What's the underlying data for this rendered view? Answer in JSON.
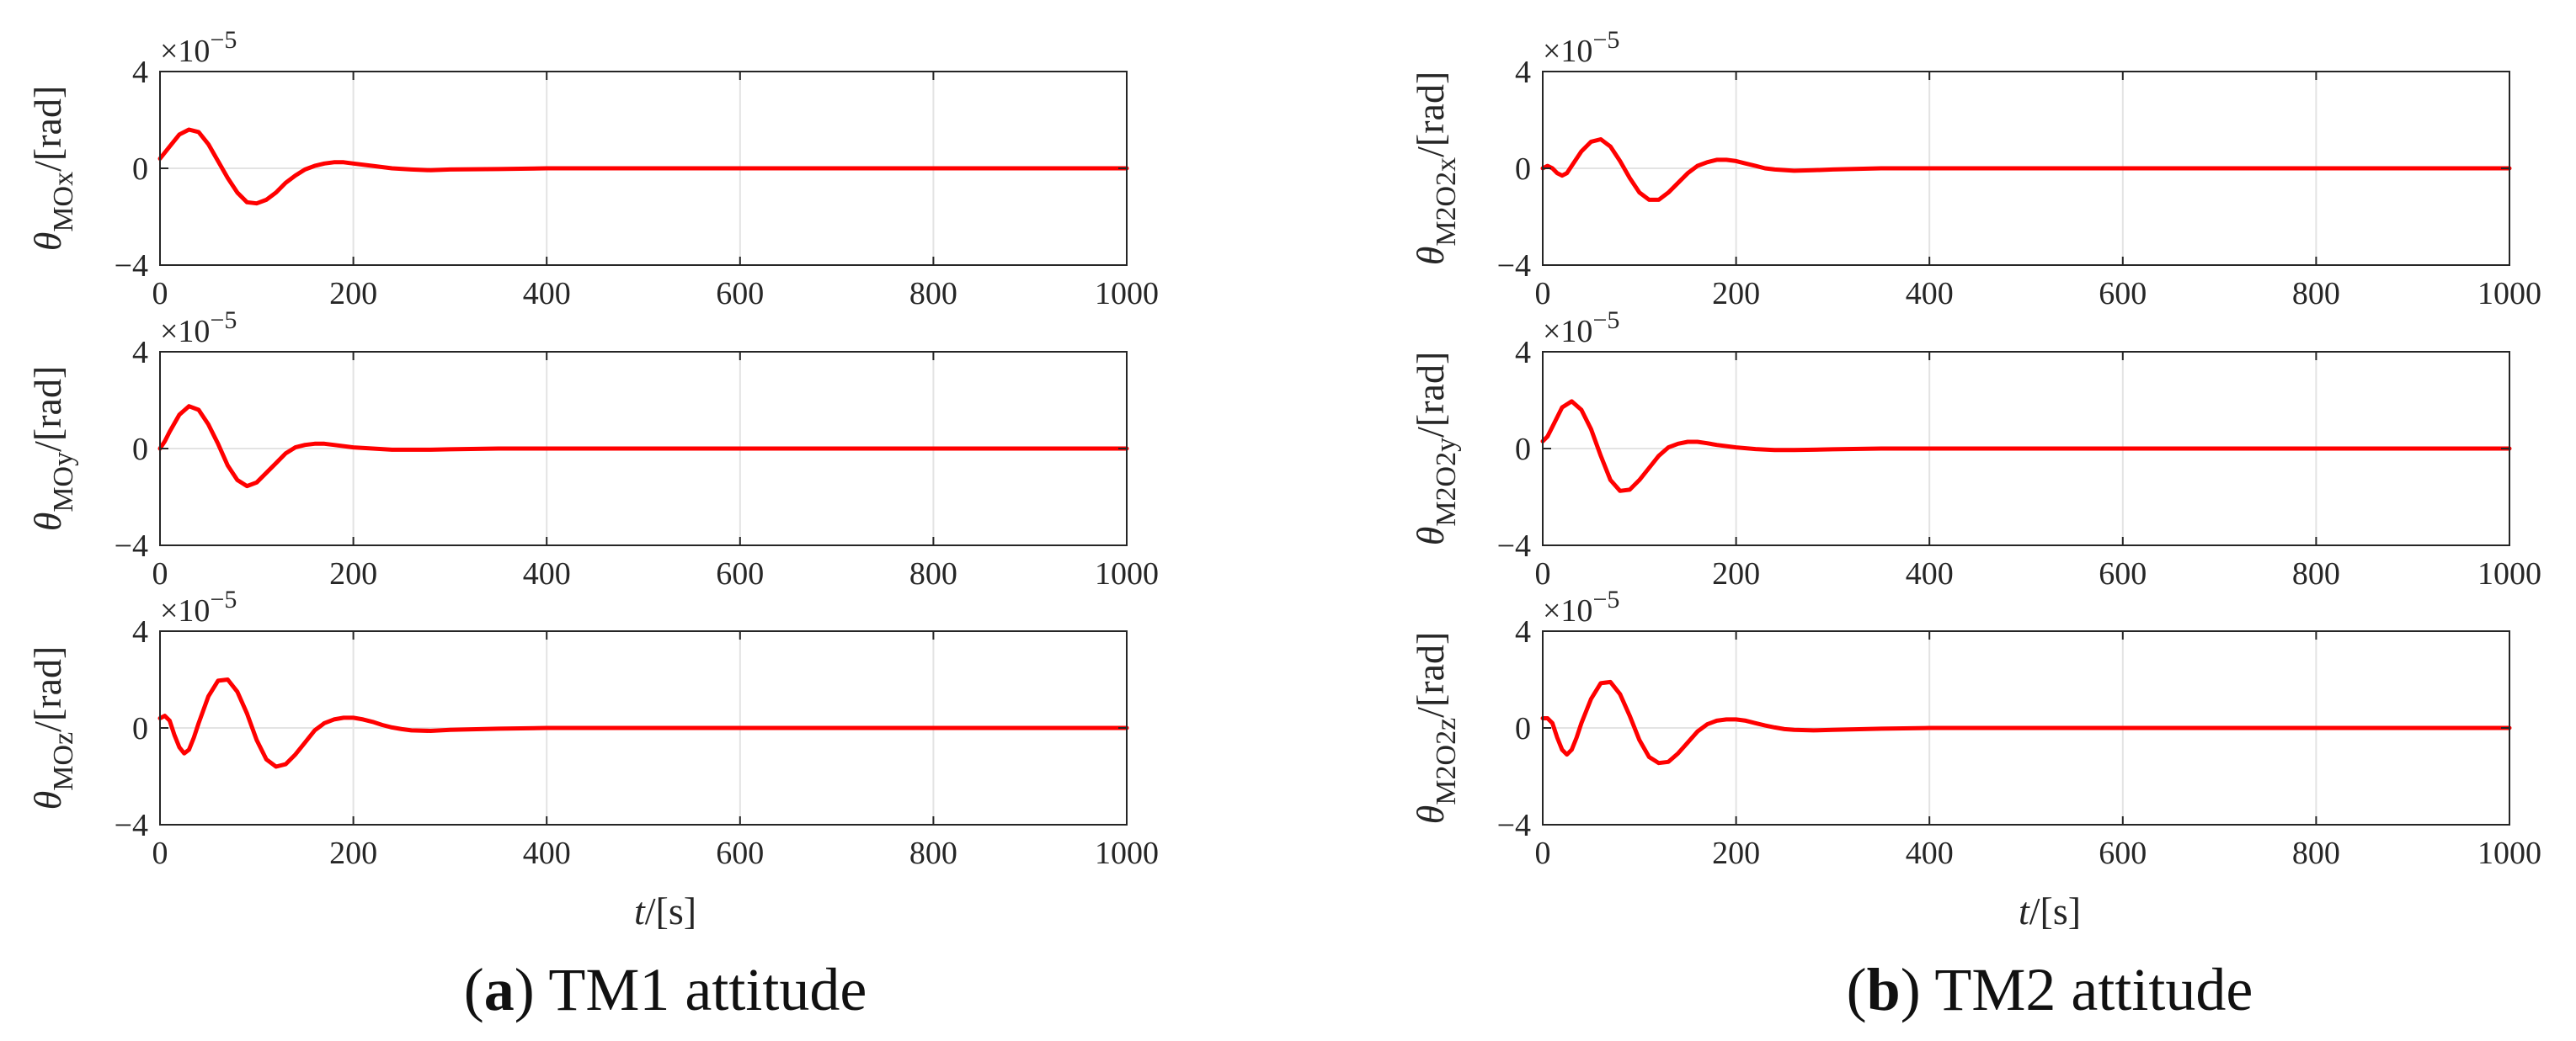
{
  "figure": {
    "captions": [
      {
        "letter": "a",
        "text": ") TM1 attitude"
      },
      {
        "letter": "b",
        "text": ") TM2 attitude"
      }
    ],
    "xlabel_var": "t",
    "xlabel_unit": "/[s]",
    "sci_base": "×10",
    "sci_exp": "−5",
    "line_color": "#ff0000"
  },
  "chart_data": [
    {
      "type": "line",
      "panel": "a-1",
      "title": "",
      "xlabel": "",
      "ylabel": "θ_MOx/[rad]",
      "ylabel_base": "θ",
      "ylabel_sub": "MOx",
      "ylabel_unit": "/[rad]",
      "xlim": [
        0,
        1000
      ],
      "ylim": [
        -4,
        4
      ],
      "xticks": [
        "0",
        "200",
        "400",
        "600",
        "800",
        "1000"
      ],
      "yticks": [
        "−4",
        "0",
        "4"
      ],
      "scale_label": "×10^-5",
      "grid": true,
      "x": [
        0,
        10,
        20,
        30,
        40,
        50,
        60,
        70,
        80,
        90,
        100,
        110,
        120,
        130,
        140,
        150,
        160,
        170,
        180,
        190,
        200,
        220,
        240,
        260,
        280,
        300,
        350,
        400,
        500,
        600,
        700,
        800,
        900,
        1000
      ],
      "y": [
        0.4,
        0.9,
        1.4,
        1.6,
        1.5,
        1.0,
        0.3,
        -0.4,
        -1.0,
        -1.4,
        -1.45,
        -1.3,
        -1.0,
        -0.6,
        -0.3,
        -0.05,
        0.1,
        0.2,
        0.25,
        0.25,
        0.2,
        0.1,
        0.0,
        -0.05,
        -0.08,
        -0.05,
        -0.03,
        0,
        0,
        0,
        0,
        0,
        0,
        0
      ]
    },
    {
      "type": "line",
      "panel": "a-2",
      "title": "",
      "xlabel": "",
      "ylabel": "θ_MOy/[rad]",
      "ylabel_base": "θ",
      "ylabel_sub": "MOy",
      "ylabel_unit": "/[rad]",
      "xlim": [
        0,
        1000
      ],
      "ylim": [
        -4,
        4
      ],
      "xticks": [
        "0",
        "200",
        "400",
        "600",
        "800",
        "1000"
      ],
      "yticks": [
        "−4",
        "0",
        "4"
      ],
      "scale_label": "×10^-5",
      "grid": true,
      "x": [
        0,
        5,
        10,
        20,
        30,
        40,
        50,
        60,
        70,
        80,
        90,
        100,
        110,
        120,
        130,
        140,
        150,
        160,
        170,
        180,
        200,
        220,
        240,
        260,
        280,
        300,
        350,
        400,
        500,
        600,
        700,
        800,
        900,
        1000
      ],
      "y": [
        0,
        0.3,
        0.7,
        1.4,
        1.75,
        1.6,
        1.0,
        0.2,
        -0.7,
        -1.3,
        -1.55,
        -1.4,
        -1.0,
        -0.6,
        -0.2,
        0.05,
        0.15,
        0.2,
        0.2,
        0.15,
        0.05,
        0.0,
        -0.05,
        -0.05,
        -0.05,
        -0.03,
        0,
        0,
        0,
        0,
        0,
        0,
        0,
        0
      ]
    },
    {
      "type": "line",
      "panel": "a-3",
      "title": "",
      "xlabel": "t/[s]",
      "ylabel": "θ_MOz/[rad]",
      "ylabel_base": "θ",
      "ylabel_sub": "MOz",
      "ylabel_unit": "/[rad]",
      "xlim": [
        0,
        1000
      ],
      "ylim": [
        -4,
        4
      ],
      "xticks": [
        "0",
        "200",
        "400",
        "600",
        "800",
        "1000"
      ],
      "yticks": [
        "−4",
        "0",
        "4"
      ],
      "scale_label": "×10^-5",
      "grid": true,
      "x": [
        0,
        5,
        10,
        15,
        20,
        25,
        30,
        35,
        40,
        50,
        60,
        70,
        80,
        90,
        100,
        110,
        120,
        130,
        140,
        150,
        160,
        170,
        180,
        190,
        200,
        210,
        220,
        230,
        240,
        250,
        260,
        280,
        300,
        350,
        400,
        500,
        600,
        700,
        800,
        900,
        1000
      ],
      "y": [
        0.4,
        0.5,
        0.3,
        -0.3,
        -0.8,
        -1.05,
        -0.9,
        -0.4,
        0.2,
        1.3,
        1.95,
        2.0,
        1.5,
        0.6,
        -0.5,
        -1.3,
        -1.6,
        -1.5,
        -1.1,
        -0.6,
        -0.1,
        0.2,
        0.35,
        0.42,
        0.42,
        0.35,
        0.25,
        0.12,
        0.02,
        -0.05,
        -0.1,
        -0.12,
        -0.08,
        -0.03,
        0,
        0,
        0,
        0,
        0,
        0,
        0
      ]
    },
    {
      "type": "line",
      "panel": "b-1",
      "title": "",
      "xlabel": "",
      "ylabel": "θ_M2O2x/[rad]",
      "ylabel_base": "θ",
      "ylabel_sub": "M2O2x",
      "ylabel_unit": "/[rad]",
      "xlim": [
        0,
        1000
      ],
      "ylim": [
        -4,
        4
      ],
      "xticks": [
        "0",
        "200",
        "400",
        "600",
        "800",
        "1000"
      ],
      "yticks": [
        "−4",
        "0",
        "4"
      ],
      "scale_label": "×10^-5",
      "grid": true,
      "x": [
        0,
        5,
        10,
        15,
        20,
        25,
        30,
        40,
        50,
        60,
        70,
        80,
        90,
        100,
        110,
        120,
        130,
        140,
        150,
        160,
        170,
        180,
        190,
        200,
        210,
        220,
        230,
        240,
        260,
        280,
        300,
        350,
        400,
        500,
        600,
        700,
        800,
        900,
        1000
      ],
      "y": [
        0,
        0.1,
        0,
        -0.2,
        -0.3,
        -0.2,
        0.1,
        0.7,
        1.1,
        1.2,
        0.9,
        0.3,
        -0.4,
        -1.0,
        -1.3,
        -1.3,
        -1.0,
        -0.6,
        -0.2,
        0.1,
        0.25,
        0.35,
        0.35,
        0.3,
        0.2,
        0.1,
        0.0,
        -0.05,
        -0.1,
        -0.08,
        -0.05,
        0,
        0,
        0,
        0,
        0,
        0,
        0,
        0
      ]
    },
    {
      "type": "line",
      "panel": "b-2",
      "title": "",
      "xlabel": "",
      "ylabel": "θ_M2O2y/[rad]",
      "ylabel_base": "θ",
      "ylabel_sub": "M2O2y",
      "ylabel_unit": "/[rad]",
      "xlim": [
        0,
        1000
      ],
      "ylim": [
        -4,
        4
      ],
      "xticks": [
        "0",
        "200",
        "400",
        "600",
        "800",
        "1000"
      ],
      "yticks": [
        "−4",
        "0",
        "4"
      ],
      "scale_label": "×10^-5",
      "grid": true,
      "x": [
        0,
        5,
        10,
        20,
        30,
        40,
        50,
        60,
        70,
        80,
        90,
        100,
        110,
        120,
        130,
        140,
        150,
        160,
        170,
        180,
        200,
        220,
        240,
        260,
        280,
        300,
        350,
        400,
        500,
        600,
        700,
        800,
        900,
        1000
      ],
      "y": [
        0.3,
        0.5,
        0.9,
        1.7,
        1.95,
        1.6,
        0.8,
        -0.3,
        -1.3,
        -1.75,
        -1.7,
        -1.3,
        -0.8,
        -0.3,
        0.05,
        0.2,
        0.28,
        0.28,
        0.22,
        0.15,
        0.05,
        -0.02,
        -0.06,
        -0.06,
        -0.05,
        -0.03,
        0,
        0,
        0,
        0,
        0,
        0,
        0,
        0
      ]
    },
    {
      "type": "line",
      "panel": "b-3",
      "title": "",
      "xlabel": "t/[s]",
      "ylabel": "θ_M2O2z/[rad]",
      "ylabel_base": "θ",
      "ylabel_sub": "M2O2z",
      "ylabel_unit": "/[rad]",
      "xlim": [
        0,
        1000
      ],
      "ylim": [
        -4,
        4
      ],
      "xticks": [
        "0",
        "200",
        "400",
        "600",
        "800",
        "1000"
      ],
      "yticks": [
        "−4",
        "0",
        "4"
      ],
      "scale_label": "×10^-5",
      "grid": true,
      "x": [
        0,
        5,
        10,
        15,
        20,
        25,
        30,
        35,
        40,
        50,
        60,
        70,
        80,
        90,
        100,
        110,
        120,
        130,
        140,
        150,
        160,
        170,
        180,
        190,
        200,
        210,
        220,
        230,
        240,
        250,
        260,
        280,
        300,
        350,
        400,
        500,
        600,
        700,
        800,
        900,
        1000
      ],
      "y": [
        0.4,
        0.4,
        0.2,
        -0.4,
        -0.9,
        -1.1,
        -0.9,
        -0.4,
        0.2,
        1.2,
        1.85,
        1.9,
        1.4,
        0.5,
        -0.5,
        -1.2,
        -1.45,
        -1.4,
        -1.05,
        -0.6,
        -0.15,
        0.15,
        0.3,
        0.35,
        0.35,
        0.3,
        0.2,
        0.1,
        0.02,
        -0.05,
        -0.08,
        -0.1,
        -0.08,
        -0.03,
        0,
        0,
        0,
        0,
        0,
        0,
        0
      ]
    }
  ]
}
